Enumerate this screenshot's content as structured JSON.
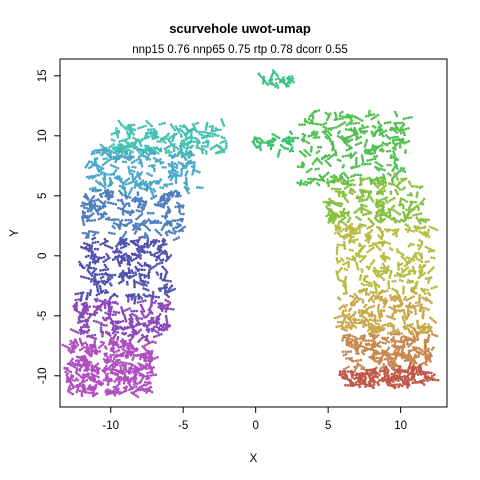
{
  "chart_data": {
    "type": "scatter",
    "title": "scurvehole uwot-umap",
    "subtitle": "nnp15 0.76 nnp65 0.75 rtp 0.78 dcorr 0.55",
    "xlabel": "X",
    "ylabel": "Y",
    "xlim": [
      -13.5,
      13.2
    ],
    "ylim": [
      -12.6,
      16.4
    ],
    "xticks": [
      -10,
      -5,
      0,
      5,
      10
    ],
    "yticks": [
      -10,
      -5,
      0,
      5,
      10,
      15
    ],
    "grid": false,
    "legend": "none",
    "clusters": [
      {
        "cx": [
          -13.0,
          -7.0
        ],
        "cy": [
          -11.5,
          -7.0
        ],
        "color": "#b04fc0",
        "n": 260
      },
      {
        "cx": [
          -12.8,
          -6.0
        ],
        "cy": [
          -6.8,
          -3.5
        ],
        "color": "#8a48b8",
        "n": 150
      },
      {
        "cx": [
          -12.0,
          -6.0
        ],
        "cy": [
          -3.5,
          1.5
        ],
        "color": "#5050b0",
        "n": 170
      },
      {
        "cx": [
          -12.0,
          -5.0
        ],
        "cy": [
          1.5,
          5.5
        ],
        "color": "#4f7fbf",
        "n": 150
      },
      {
        "cx": [
          -11.5,
          -4.0
        ],
        "cy": [
          5.5,
          9.0
        ],
        "color": "#48a8c8",
        "n": 160
      },
      {
        "cx": [
          -10.0,
          -2.0
        ],
        "cy": [
          8.5,
          11.0
        ],
        "color": "#46c2b0",
        "n": 140
      },
      {
        "cx": [
          0.5,
          2.5
        ],
        "cy": [
          14.2,
          15.0
        ],
        "color": "#3ec28a",
        "n": 20
      },
      {
        "cx": [
          -0.2,
          2.6
        ],
        "cy": [
          8.8,
          10.2
        ],
        "color": "#3ec070",
        "n": 30
      },
      {
        "cx": [
          3.0,
          10.5
        ],
        "cy": [
          6.0,
          12.0
        ],
        "color": "#50c050",
        "n": 190
      },
      {
        "cx": [
          5.0,
          11.5
        ],
        "cy": [
          2.5,
          6.5
        ],
        "color": "#86c040",
        "n": 150
      },
      {
        "cx": [
          5.5,
          12.2
        ],
        "cy": [
          -3.0,
          2.5
        ],
        "color": "#b8bc40",
        "n": 180
      },
      {
        "cx": [
          5.8,
          12.2
        ],
        "cy": [
          -6.5,
          -3.0
        ],
        "color": "#c8a848",
        "n": 150
      },
      {
        "cx": [
          6.0,
          12.2
        ],
        "cy": [
          -9.5,
          -6.5
        ],
        "color": "#c88850",
        "n": 160
      },
      {
        "cx": [
          6.0,
          12.2
        ],
        "cy": [
          -10.8,
          -9.5
        ],
        "color": "#c05848",
        "n": 110
      }
    ]
  }
}
